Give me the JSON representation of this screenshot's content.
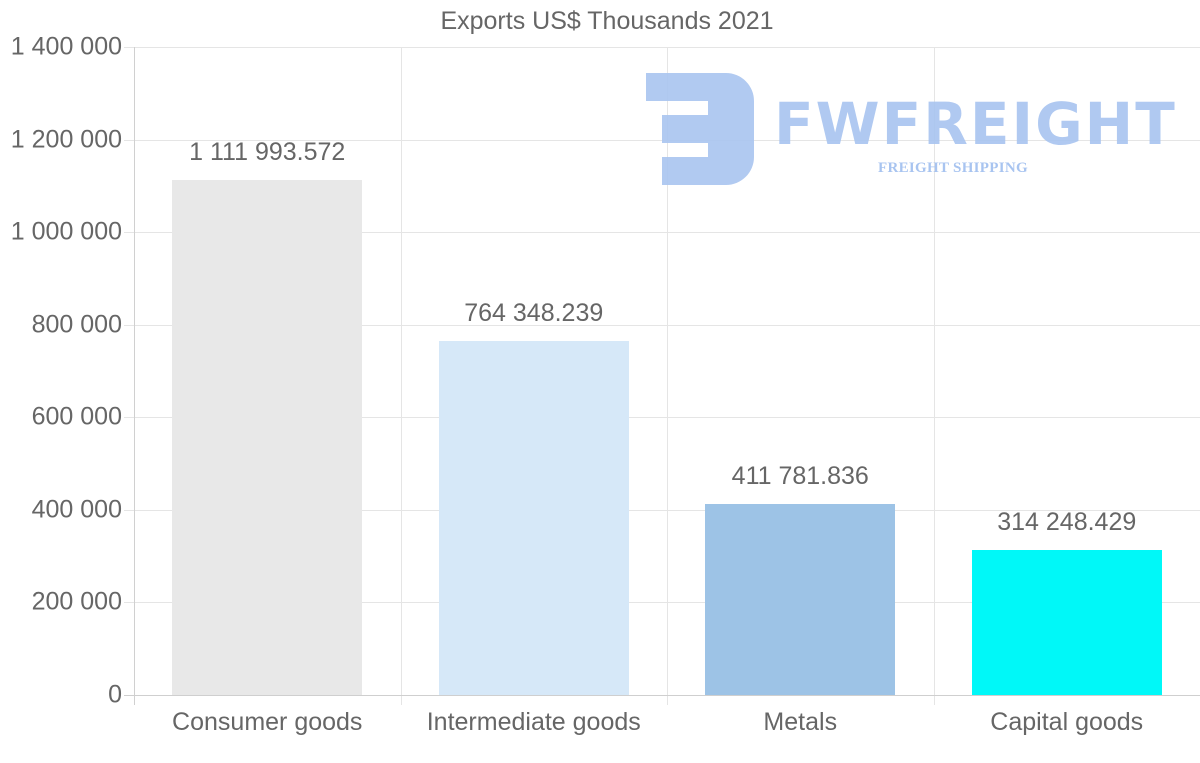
{
  "chart_data": {
    "type": "bar",
    "title": "Exports US$ Thousands 2021",
    "xlabel": "",
    "ylabel": "",
    "categories": [
      "Consumer goods",
      "Intermediate goods",
      "Metals",
      "Capital goods"
    ],
    "values": [
      1111993.572,
      764348.239,
      411781.836,
      314248.429
    ],
    "value_labels": [
      "1 111 993.572",
      "764 348.239",
      "411 781.836",
      "314 248.429"
    ],
    "colors": [
      "#e8e8e8",
      "#d6e8f8",
      "#9dc3e6",
      "#00f8f8"
    ],
    "ylim": [
      0,
      1400000
    ],
    "yticks": [
      0,
      200000,
      400000,
      600000,
      800000,
      1000000,
      1200000,
      1400000
    ],
    "ytick_labels": [
      "0",
      "200 000",
      "400 000",
      "600 000",
      "800 000",
      "1 000 000",
      "1 200 000",
      "1 400 000"
    ],
    "grid": true,
    "legend": "none"
  },
  "watermark": {
    "brand": "FWFREIGHT",
    "tagline": "FREIGHT SHIPPING",
    "color": "#a8c4f0"
  }
}
